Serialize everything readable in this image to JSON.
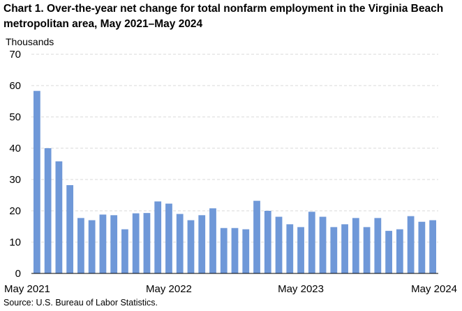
{
  "title": "Chart 1. Over-the-year net change for total nonfarm employment in the Virginia Beach metropolitan area, May 2021–May 2024",
  "ylabel": "Thousands",
  "source": "Source: U.S. Bureau of Labor Statistics.",
  "colors": {
    "bar": "#6f98d8",
    "grid": "#d9d9d9",
    "axis": "#000000"
  },
  "chart_data": {
    "type": "bar",
    "title": "Chart 1. Over-the-year net change for total nonfarm employment in the Virginia Beach metropolitan area, May 2021–May 2024",
    "ylabel": "Thousands",
    "xlabel": "",
    "ylim": [
      0,
      70
    ],
    "yticks": [
      0,
      10,
      20,
      30,
      40,
      50,
      60,
      70
    ],
    "grid": true,
    "x_tick_labels": [
      {
        "index": 0,
        "label": "May 2021"
      },
      {
        "index": 12,
        "label": "May 2022"
      },
      {
        "index": 24,
        "label": "May 2023"
      },
      {
        "index": 36,
        "label": "May 2024"
      }
    ],
    "categories": [
      "May 2021",
      "Jun 2021",
      "Jul 2021",
      "Aug 2021",
      "Sep 2021",
      "Oct 2021",
      "Nov 2021",
      "Dec 2021",
      "Jan 2022",
      "Feb 2022",
      "Mar 2022",
      "Apr 2022",
      "May 2022",
      "Jun 2022",
      "Jul 2022",
      "Aug 2022",
      "Sep 2022",
      "Oct 2022",
      "Nov 2022",
      "Dec 2022",
      "Jan 2023",
      "Feb 2023",
      "Mar 2023",
      "Apr 2023",
      "May 2023",
      "Jun 2023",
      "Jul 2023",
      "Aug 2023",
      "Sep 2023",
      "Oct 2023",
      "Nov 2023",
      "Dec 2023",
      "Jan 2024",
      "Feb 2024",
      "Mar 2024",
      "Apr 2024",
      "May 2024"
    ],
    "values": [
      58.3,
      40.0,
      35.8,
      28.2,
      17.7,
      17.0,
      18.8,
      18.6,
      14.1,
      19.2,
      19.3,
      23.0,
      22.3,
      19.0,
      17.0,
      18.6,
      20.8,
      14.5,
      14.5,
      14.1,
      23.2,
      20.0,
      18.1,
      15.7,
      14.8,
      19.7,
      18.1,
      14.8,
      15.7,
      17.7,
      14.8,
      17.7,
      13.6,
      14.1,
      18.3,
      16.5,
      17.0
    ]
  }
}
